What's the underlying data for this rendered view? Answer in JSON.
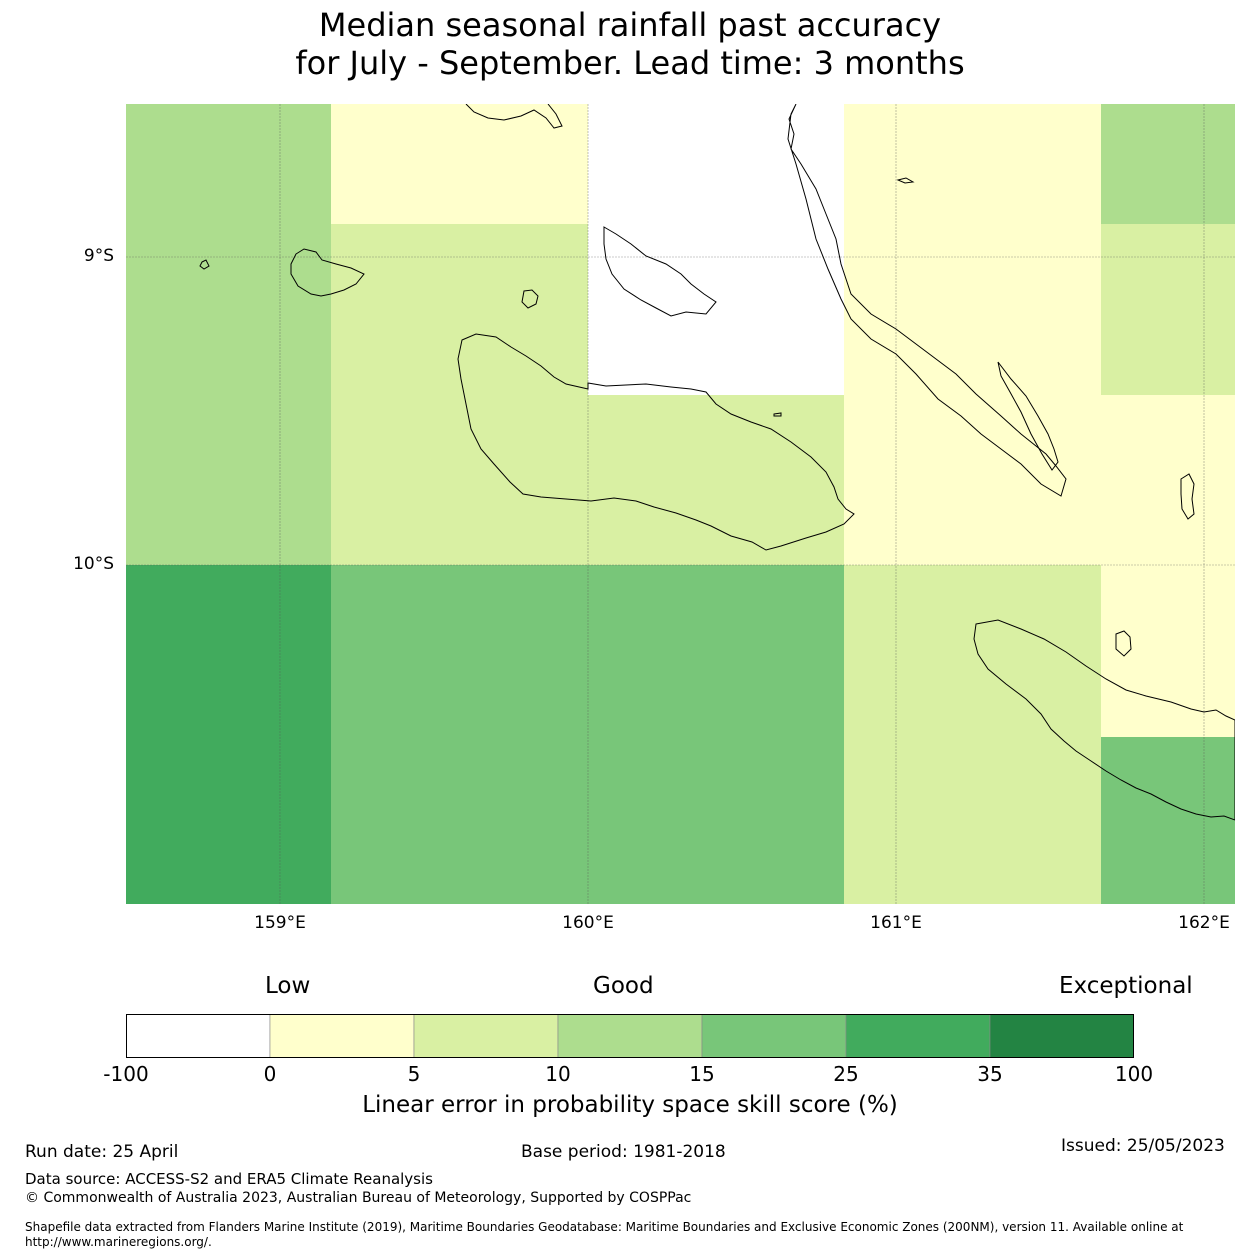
{
  "title": {
    "line1": "Median seasonal rainfall past accuracy",
    "line2": "for July - September. Lead time: 3 months"
  },
  "map": {
    "lat_labels": [
      "9°S",
      "10°S"
    ],
    "lon_labels": [
      "159°E",
      "160°E",
      "161°E",
      "162°E"
    ],
    "legend_colors": {
      "-100 to 0": "#ffffff",
      "0 to 5": "#ffffcc",
      "5 to 10": "#d9f0a3",
      "10 to 15": "#addd8e",
      "15 to 25": "#78c679",
      "25 to 35": "#41ab5d",
      "35 to 100": "#238443"
    },
    "grid_cells": [
      {
        "row": 0,
        "col": 0,
        "category": "10 to 15"
      },
      {
        "row": 0,
        "col": 1,
        "category": "0 to 5"
      },
      {
        "row": 0,
        "col": 2,
        "category": "-100 to 0"
      },
      {
        "row": 0,
        "col": 3,
        "category": "0 to 5"
      },
      {
        "row": 0,
        "col": 4,
        "category": "10 to 15"
      },
      {
        "row": 1,
        "col": 0,
        "category": "10 to 15"
      },
      {
        "row": 1,
        "col": 1,
        "category": "5 to 10"
      },
      {
        "row": 1,
        "col": 2,
        "category": "-100 to 0"
      },
      {
        "row": 1,
        "col": 3,
        "category": "0 to 5"
      },
      {
        "row": 1,
        "col": 4,
        "category": "5 to 10"
      },
      {
        "row": 2,
        "col": 0,
        "category": "10 to 15"
      },
      {
        "row": 2,
        "col": 1,
        "category": "5 to 10"
      },
      {
        "row": 2,
        "col": 2,
        "category": "5 to 10"
      },
      {
        "row": 2,
        "col": 3,
        "category": "0 to 5"
      },
      {
        "row": 2,
        "col": 4,
        "category": "0 to 5"
      },
      {
        "row": 3,
        "col": 0,
        "category": "25 to 35"
      },
      {
        "row": 3,
        "col": 1,
        "category": "15 to 25"
      },
      {
        "row": 3,
        "col": 2,
        "category": "15 to 25"
      },
      {
        "row": 3,
        "col": 3,
        "category": "5 to 10"
      },
      {
        "row": 3,
        "col": 4,
        "category": "0 to 5"
      },
      {
        "row": 4,
        "col": 0,
        "category": "25 to 35"
      },
      {
        "row": 4,
        "col": 1,
        "category": "15 to 25"
      },
      {
        "row": 4,
        "col": 2,
        "category": "15 to 25"
      },
      {
        "row": 4,
        "col": 3,
        "category": "5 to 10"
      },
      {
        "row": 4,
        "col": 4,
        "category": "15 to 25"
      }
    ]
  },
  "legend": {
    "category_labels": [
      "Low",
      "Good",
      "Exceptional"
    ],
    "ticks": [
      "-100",
      "0",
      "5",
      "10",
      "15",
      "25",
      "35",
      "100"
    ],
    "bins": [
      {
        "range": "-100 to 0",
        "color": "#ffffff"
      },
      {
        "range": "0 to 5",
        "color": "#ffffcc"
      },
      {
        "range": "5 to 10",
        "color": "#d9f0a3"
      },
      {
        "range": "10 to 15",
        "color": "#addd8e"
      },
      {
        "range": "15 to 25",
        "color": "#78c679"
      },
      {
        "range": "25 to 35",
        "color": "#41ab5d"
      },
      {
        "range": "35 to 100",
        "color": "#238443"
      }
    ],
    "title": "Linear error in probability space skill score (%)"
  },
  "footer": {
    "run_date": "Run date: 25 April",
    "base_period": "Base period: 1981-2018",
    "issued": "Issued: 25/05/2023",
    "data_source": "Data source: ACCESS-S2 and ERA5 Climate Reanalysis",
    "copyright": "© Commonwealth of Australia 2023, Australian Bureau of Meteorology, Supported by COSPPac",
    "shapefile": "Shapefile data extracted from Flanders Marine Institute (2019), Maritime Boundaries Geodatabase: Maritime Boundaries and Exclusive Economic Zones (200NM), version 11. Available online at http://www.marineregions.org/."
  }
}
